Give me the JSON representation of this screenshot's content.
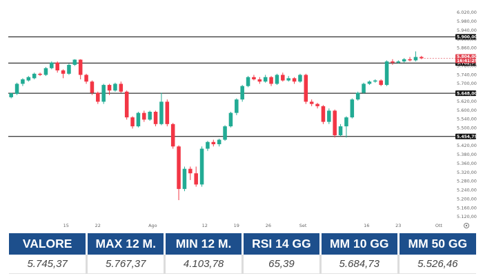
{
  "chart_data": {
    "type": "candlestick",
    "ylim": [
      5090,
      6040
    ],
    "grid": false,
    "y_ticks": [
      "6.020,00",
      "5.980,00",
      "5.940,00",
      "5.900,00",
      "5.860,00",
      "5.820,00",
      "5.780,00",
      "5.740,00",
      "5.700,00",
      "5.660,00",
      "5.620,00",
      "5.600,00",
      "5.540,00",
      "5.500,00",
      "5.460,00",
      "5.420,00",
      "5.380,00",
      "5.360,00",
      "5.320,00",
      "5.280,00",
      "5.240,00",
      "5.200,00",
      "5.160,00",
      "5.120,00"
    ],
    "x_labels": [
      {
        "label": "15",
        "index": 9.5
      },
      {
        "label": "22",
        "index": 15
      },
      {
        "label": "Ago",
        "index": 24.5
      },
      {
        "label": "12",
        "index": 33.5
      },
      {
        "label": "19",
        "index": 39
      },
      {
        "label": "26",
        "index": 44.5
      },
      {
        "label": "Set",
        "index": 50.5
      },
      {
        "label": "16",
        "index": 61.5
      },
      {
        "label": "23",
        "index": 67
      },
      {
        "label": "Ott",
        "index": 74
      }
    ],
    "levels": [
      {
        "value": 5900.0,
        "label": "5.900,00"
      },
      {
        "value": 5782.75,
        "label": "5.782,75"
      },
      {
        "value": 5648.0,
        "label": "5.648,00"
      },
      {
        "value": 5454.75,
        "label": "5.454,75"
      }
    ],
    "current_price": {
      "label": "5.804,00",
      "countdown": "16:41:25",
      "color": "#e0424f"
    },
    "candles": [
      [
        5630,
        5648,
        5625,
        5650
      ],
      [
        5645,
        5690,
        5640,
        5695
      ],
      [
        5690,
        5710,
        5680,
        5715
      ],
      [
        5705,
        5720,
        5700,
        5725
      ],
      [
        5715,
        5735,
        5710,
        5740
      ],
      [
        5735,
        5730,
        5725,
        5740
      ],
      [
        5730,
        5760,
        5725,
        5765
      ],
      [
        5760,
        5785,
        5755,
        5790
      ],
      [
        5785,
        5750,
        5740,
        5790
      ],
      [
        5750,
        5735,
        5715,
        5755
      ],
      [
        5735,
        5775,
        5730,
        5780
      ],
      [
        5775,
        5798,
        5770,
        5800
      ],
      [
        5798,
        5730,
        5710,
        5800
      ],
      [
        5730,
        5700,
        5690,
        5735
      ],
      [
        5700,
        5650,
        5640,
        5705
      ],
      [
        5650,
        5610,
        5600,
        5655
      ],
      [
        5610,
        5685,
        5600,
        5690
      ],
      [
        5685,
        5660,
        5640,
        5690
      ],
      [
        5660,
        5690,
        5655,
        5695
      ],
      [
        5690,
        5655,
        5650,
        5700
      ],
      [
        5655,
        5540,
        5530,
        5660
      ],
      [
        5540,
        5500,
        5490,
        5545
      ],
      [
        5500,
        5560,
        5495,
        5565
      ],
      [
        5560,
        5530,
        5520,
        5570
      ],
      [
        5530,
        5565,
        5525,
        5570
      ],
      [
        5565,
        5510,
        5500,
        5570
      ],
      [
        5510,
        5610,
        5505,
        5650
      ],
      [
        5610,
        5510,
        5500,
        5620
      ],
      [
        5510,
        5410,
        5400,
        5515
      ],
      [
        5410,
        5220,
        5170,
        5415
      ],
      [
        5220,
        5310,
        5210,
        5320
      ],
      [
        5310,
        5290,
        5260,
        5320
      ],
      [
        5290,
        5240,
        5230,
        5320
      ],
      [
        5240,
        5400,
        5230,
        5410
      ],
      [
        5400,
        5430,
        5390,
        5435
      ],
      [
        5430,
        5420,
        5410,
        5440
      ],
      [
        5420,
        5440,
        5410,
        5445
      ],
      [
        5440,
        5500,
        5435,
        5505
      ],
      [
        5500,
        5560,
        5495,
        5565
      ],
      [
        5560,
        5620,
        5550,
        5625
      ],
      [
        5620,
        5680,
        5610,
        5685
      ],
      [
        5680,
        5720,
        5675,
        5725
      ],
      [
        5720,
        5710,
        5705,
        5730
      ],
      [
        5710,
        5700,
        5690,
        5720
      ],
      [
        5700,
        5720,
        5695,
        5730
      ],
      [
        5720,
        5690,
        5680,
        5725
      ],
      [
        5690,
        5730,
        5685,
        5735
      ],
      [
        5730,
        5705,
        5700,
        5740
      ],
      [
        5705,
        5715,
        5700,
        5725
      ],
      [
        5715,
        5700,
        5690,
        5720
      ],
      [
        5700,
        5730,
        5695,
        5735
      ],
      [
        5730,
        5610,
        5600,
        5735
      ],
      [
        5610,
        5600,
        5590,
        5620
      ],
      [
        5600,
        5590,
        5580,
        5605
      ],
      [
        5590,
        5520,
        5510,
        5595
      ],
      [
        5520,
        5570,
        5510,
        5580
      ],
      [
        5570,
        5460,
        5450,
        5575
      ],
      [
        5460,
        5500,
        5455,
        5510
      ],
      [
        5500,
        5540,
        5450,
        5545
      ],
      [
        5540,
        5620,
        5535,
        5625
      ],
      [
        5620,
        5650,
        5615,
        5655
      ],
      [
        5650,
        5690,
        5645,
        5695
      ],
      [
        5690,
        5700,
        5685,
        5705
      ],
      [
        5700,
        5705,
        5695,
        5710
      ],
      [
        5705,
        5685,
        5680,
        5710
      ],
      [
        5685,
        5790,
        5680,
        5795
      ],
      [
        5790,
        5785,
        5775,
        5800
      ],
      [
        5785,
        5790,
        5780,
        5795
      ],
      [
        5790,
        5800,
        5785,
        5805
      ],
      [
        5800,
        5795,
        5790,
        5810
      ],
      [
        5795,
        5810,
        5790,
        5835
      ],
      [
        5810,
        5804,
        5800,
        5815
      ]
    ]
  },
  "stats": {
    "headers": [
      "VALORE",
      "MAX 12 M.",
      "MIN 12 M.",
      "RSI 14 GG",
      "MM 10 GG",
      "MM 50 GG"
    ],
    "values": [
      "5.745,37",
      "5.767,37",
      "4.103,78",
      "65,39",
      "5.684,73",
      "5.526,46"
    ]
  },
  "colors": {
    "up": "#22ab94",
    "down": "#f23645",
    "header_bg": "#1d4f8c",
    "header_text": "#ffffff",
    "level_line": "#000000"
  },
  "icons": [
    "settings-icon"
  ]
}
